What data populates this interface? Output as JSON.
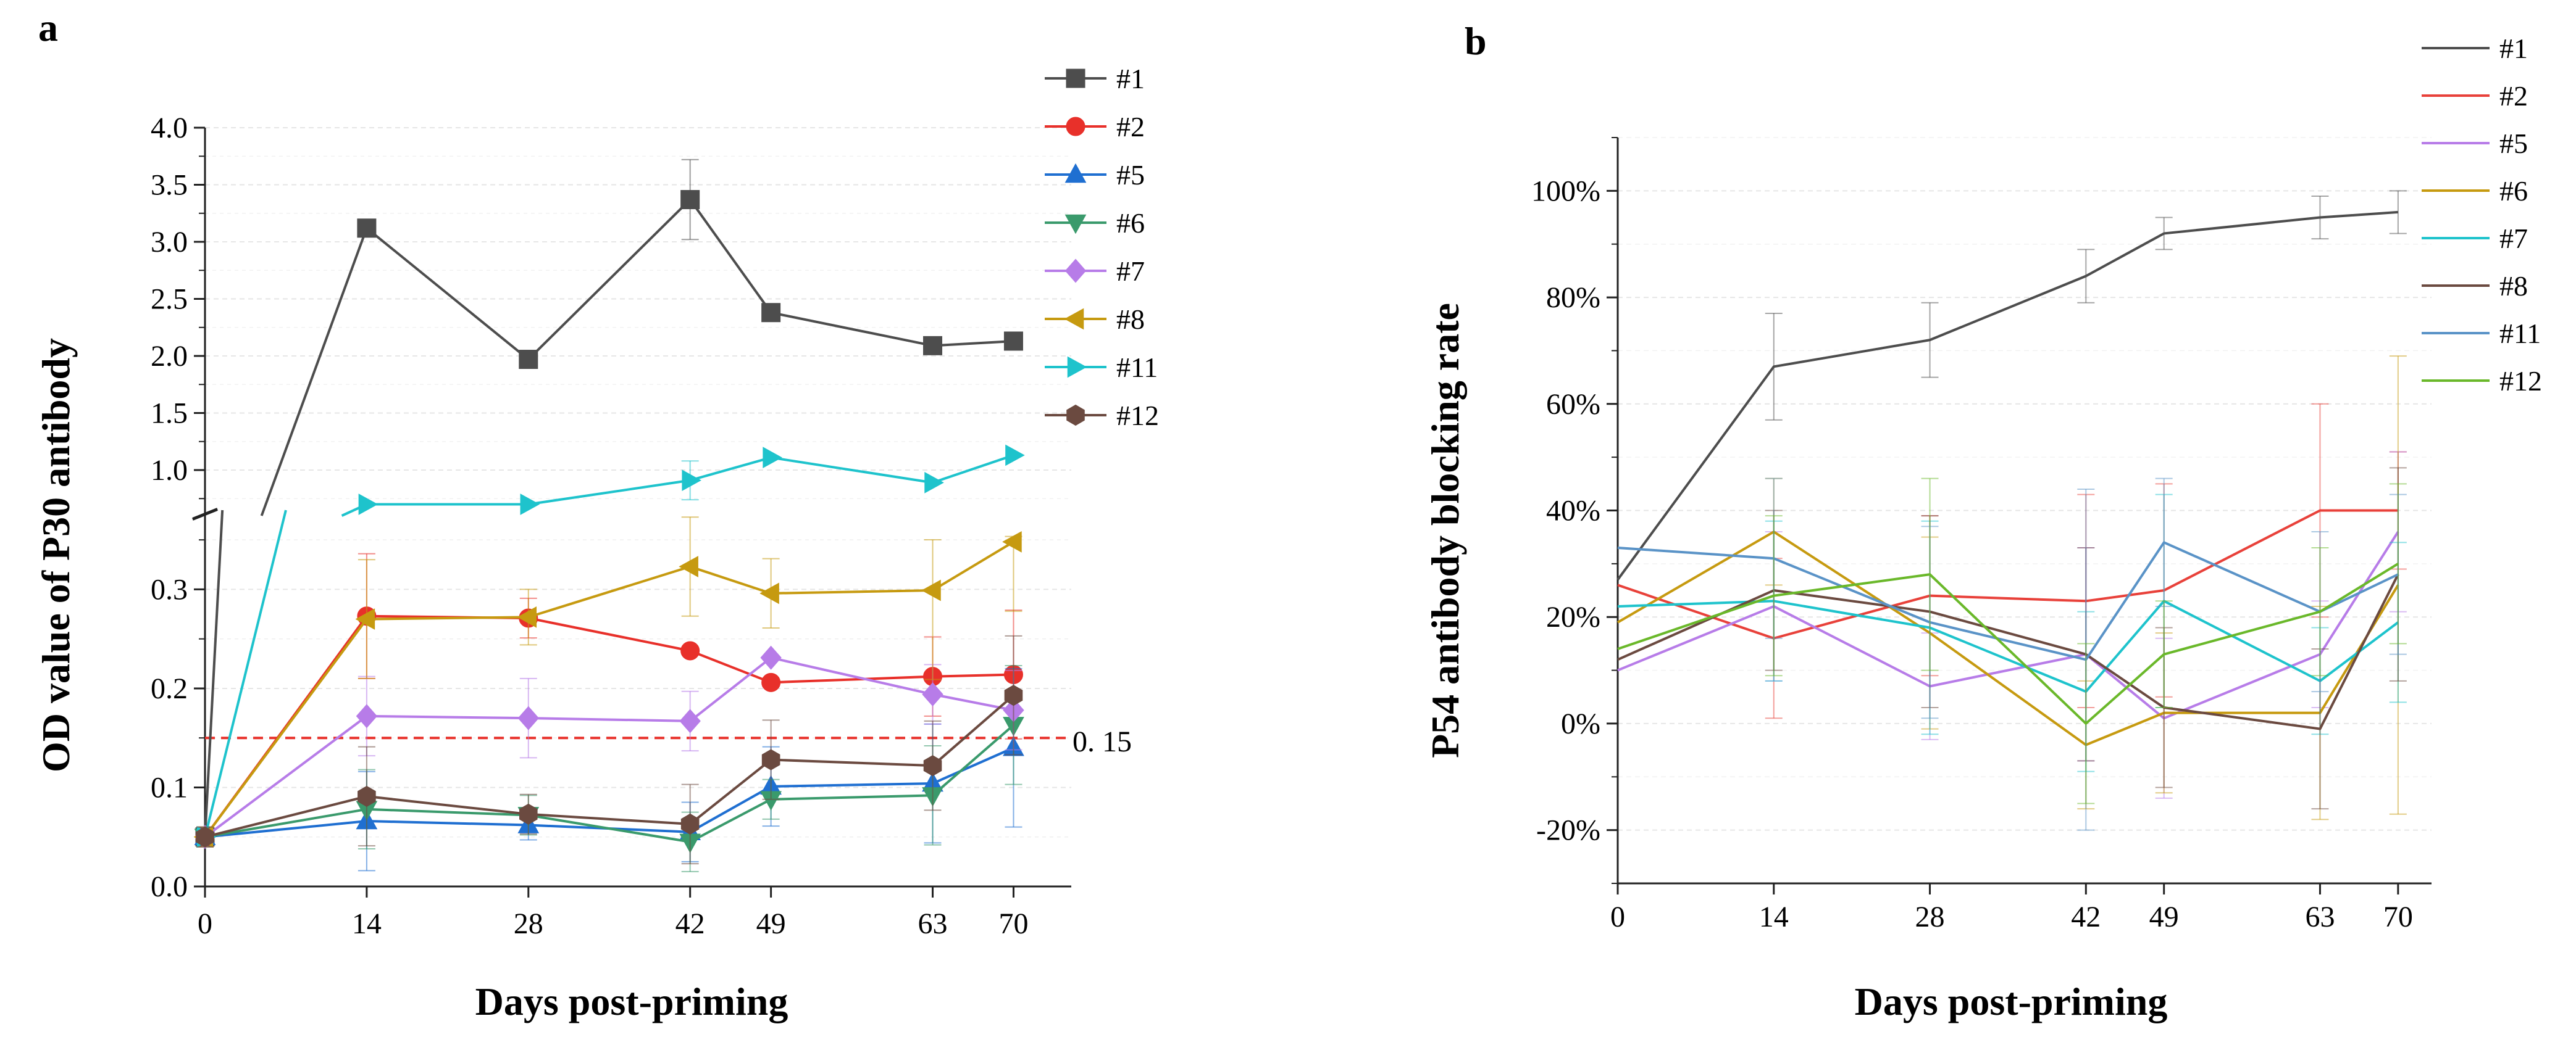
{
  "chart_data": [
    {
      "panel": "a",
      "type": "line",
      "xlabel": "Days post-priming",
      "ylabel": "OD value of P30 antibody",
      "x": [
        0,
        14,
        28,
        42,
        49,
        63,
        70
      ],
      "x_tick_labels": [
        "0",
        "14",
        "28",
        "42",
        "49",
        "63",
        "70"
      ],
      "y_axis_break": true,
      "ylim_lower": [
        0,
        0.38
      ],
      "ylim_upper": [
        0.6,
        4.0
      ],
      "y_tick_labels_lower": [
        "0.0",
        "0.1",
        "0.2",
        "0.3"
      ],
      "y_tick_labels_upper": [
        "1.0",
        "1.5",
        "2.0",
        "2.5",
        "3.0",
        "3.5",
        "4.0"
      ],
      "threshold": {
        "value": 0.15,
        "label": "0. 15",
        "color": "#e8302a"
      },
      "legend_position": "top-right",
      "series": [
        {
          "name": "#1",
          "color": "#4d4d4d",
          "marker": "square",
          "values": [
            0.05,
            3.12,
            1.97,
            3.37,
            2.38,
            2.09,
            2.13
          ],
          "errors": [
            0,
            0,
            0,
            0.35,
            0,
            0,
            0
          ]
        },
        {
          "name": "#2",
          "color": "#e8302a",
          "marker": "circle",
          "values": [
            0.05,
            0.273,
            0.271,
            0.238,
            0.206,
            0.212,
            0.214
          ],
          "errors": [
            0,
            0.063,
            0.02,
            0,
            0,
            0.04,
            0.065
          ]
        },
        {
          "name": "#5",
          "color": "#1f6fd1",
          "marker": "triangle-up",
          "values": [
            0.05,
            0.066,
            0.062,
            0.055,
            0.101,
            0.104,
            0.14
          ],
          "errors": [
            0.01,
            0.05,
            0.015,
            0.03,
            0.04,
            0.06,
            0.08
          ]
        },
        {
          "name": "#6",
          "color": "#3a9a6c",
          "marker": "triangle-down",
          "values": [
            0.05,
            0.078,
            0.072,
            0.045,
            0.088,
            0.092,
            0.163
          ],
          "errors": [
            0.01,
            0.04,
            0.02,
            0.03,
            0.02,
            0.05,
            0.06
          ]
        },
        {
          "name": "#7",
          "color": "#b77ce8",
          "marker": "diamond",
          "values": [
            0.05,
            0.172,
            0.17,
            0.167,
            0.231,
            0.194,
            0.178
          ],
          "errors": [
            0.01,
            0.04,
            0.04,
            0.03,
            0,
            0.03,
            0.04
          ]
        },
        {
          "name": "#8",
          "color": "#c69a10",
          "marker": "triangle-left",
          "values": [
            0.05,
            0.27,
            0.272,
            0.323,
            0.296,
            0.299,
            0.348
          ],
          "errors": [
            0.01,
            0.06,
            0.028,
            0.05,
            0.035,
            0.09,
            0.07
          ]
        },
        {
          "name": "#11",
          "color": "#1ec3cc",
          "marker": "triangle-right",
          "values": [
            0.05,
            0.7,
            0.7,
            0.91,
            1.11,
            0.89,
            1.13
          ],
          "errors": [
            0,
            0,
            0,
            0.17,
            0,
            0,
            0
          ]
        },
        {
          "name": "#12",
          "color": "#6b4a40",
          "marker": "hexagon",
          "values": [
            0.05,
            0.091,
            0.073,
            0.063,
            0.128,
            0.122,
            0.193
          ],
          "errors": [
            0.01,
            0.05,
            0.02,
            0.04,
            0.04,
            0.045,
            0.06
          ]
        }
      ]
    },
    {
      "panel": "b",
      "type": "line",
      "xlabel": "Days post-priming",
      "ylabel": "P54 antibody blocking rate",
      "x": [
        0,
        14,
        28,
        42,
        49,
        63,
        70
      ],
      "x_tick_labels": [
        "0",
        "14",
        "28",
        "42",
        "49",
        "63",
        "70"
      ],
      "ylim": [
        -30,
        110
      ],
      "y_tick_values": [
        -20,
        0,
        20,
        40,
        60,
        80,
        100
      ],
      "y_tick_labels": [
        "-20%",
        "0%",
        "20%",
        "40%",
        "60%",
        "80%",
        "100%"
      ],
      "legend_position": "top-right",
      "series": [
        {
          "name": "#1",
          "color": "#4d4d4d",
          "values": [
            27,
            67,
            72,
            84,
            92,
            95,
            96
          ],
          "errors": [
            0,
            10,
            7,
            5,
            3,
            4,
            4
          ]
        },
        {
          "name": "#2",
          "color": "#e8413a",
          "values": [
            26,
            16,
            24,
            23,
            25,
            40,
            40
          ],
          "errors": [
            0,
            15,
            15,
            20,
            20,
            20,
            11
          ]
        },
        {
          "name": "#5",
          "color": "#b77ce8",
          "values": [
            10,
            22,
            7,
            13,
            1,
            13,
            36
          ],
          "errors": [
            0,
            14,
            10,
            20,
            15,
            10,
            15
          ]
        },
        {
          "name": "#6",
          "color": "#c69a10",
          "values": [
            19,
            36,
            17,
            -4,
            2,
            2,
            26
          ],
          "errors": [
            0,
            10,
            18,
            12,
            15,
            20,
            43
          ]
        },
        {
          "name": "#7",
          "color": "#1ec3cc",
          "values": [
            22,
            23,
            18,
            6,
            23,
            8,
            19
          ],
          "errors": [
            0,
            15,
            20,
            15,
            20,
            10,
            15
          ]
        },
        {
          "name": "#8",
          "color": "#6b4a40",
          "values": [
            12,
            25,
            21,
            13,
            3,
            -1,
            28
          ],
          "errors": [
            0,
            15,
            18,
            20,
            15,
            15,
            20
          ]
        },
        {
          "name": "#11",
          "color": "#5a93c7",
          "values": [
            33,
            31,
            19,
            12,
            34,
            21,
            28
          ],
          "errors": [
            0,
            15,
            18,
            32,
            12,
            15,
            15
          ]
        },
        {
          "name": "#12",
          "color": "#6ab82a",
          "values": [
            14,
            24,
            28,
            0,
            13,
            21,
            30
          ],
          "errors": [
            0,
            15,
            18,
            15,
            10,
            12,
            15
          ]
        }
      ]
    }
  ]
}
